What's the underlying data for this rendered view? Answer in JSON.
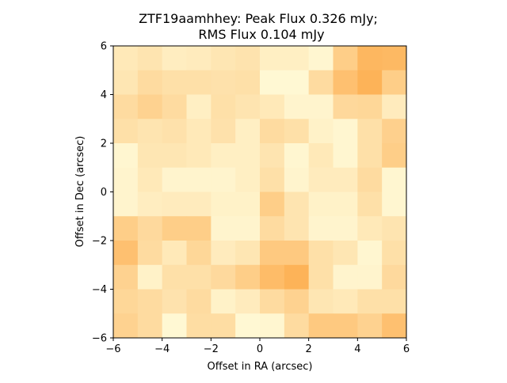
{
  "chart_data": {
    "type": "heatmap",
    "title_line1": "ZTF19aamhhey: Peak Flux 0.326 mJy;",
    "title_line2": "RMS Flux 0.104 mJy",
    "xlabel": "Offset in RA (arcsec)",
    "ylabel": "Offset in Dec (arcsec)",
    "xlim": [
      -6,
      6
    ],
    "ylim": [
      -6,
      6
    ],
    "x_ticks": [
      "−6",
      "−4",
      "−2",
      "0",
      "2",
      "4",
      "6"
    ],
    "y_ticks": [
      "−6",
      "−4",
      "−2",
      "0",
      "2",
      "4",
      "6"
    ],
    "grid": false,
    "colormap": "YlOrBr-like (pale yellow to orange)",
    "color_low": "#ffffe0",
    "color_high": "#fda540",
    "value_range": [
      0,
      1
    ],
    "grid_size": [
      12,
      12
    ],
    "cell_extent_x": [
      -6,
      6
    ],
    "cell_extent_y": [
      -6,
      6
    ],
    "rows_top_to_bottom": [
      [
        0.25,
        0.3,
        0.2,
        0.22,
        0.28,
        0.31,
        0.18,
        0.18,
        0.1,
        0.55,
        0.8,
        0.78
      ],
      [
        0.28,
        0.4,
        0.35,
        0.35,
        0.33,
        0.35,
        0.08,
        0.08,
        0.4,
        0.7,
        0.85,
        0.55
      ],
      [
        0.4,
        0.5,
        0.4,
        0.18,
        0.35,
        0.3,
        0.25,
        0.12,
        0.12,
        0.43,
        0.45,
        0.22
      ],
      [
        0.35,
        0.3,
        0.33,
        0.25,
        0.33,
        0.18,
        0.4,
        0.35,
        0.15,
        0.1,
        0.35,
        0.52
      ],
      [
        0.1,
        0.28,
        0.28,
        0.25,
        0.18,
        0.18,
        0.3,
        0.1,
        0.25,
        0.1,
        0.35,
        0.55
      ],
      [
        0.12,
        0.25,
        0.12,
        0.12,
        0.12,
        0.18,
        0.35,
        0.12,
        0.22,
        0.22,
        0.4,
        0.1
      ],
      [
        0.12,
        0.2,
        0.22,
        0.22,
        0.15,
        0.15,
        0.55,
        0.3,
        0.15,
        0.15,
        0.35,
        0.1
      ],
      [
        0.55,
        0.42,
        0.55,
        0.55,
        0.12,
        0.12,
        0.4,
        0.3,
        0.12,
        0.12,
        0.25,
        0.3
      ],
      [
        0.7,
        0.4,
        0.25,
        0.45,
        0.22,
        0.28,
        0.6,
        0.6,
        0.35,
        0.28,
        0.1,
        0.35
      ],
      [
        0.5,
        0.15,
        0.35,
        0.35,
        0.42,
        0.55,
        0.75,
        0.85,
        0.35,
        0.12,
        0.12,
        0.42
      ],
      [
        0.45,
        0.4,
        0.32,
        0.4,
        0.15,
        0.22,
        0.4,
        0.5,
        0.28,
        0.25,
        0.35,
        0.35
      ],
      [
        0.5,
        0.4,
        0.08,
        0.38,
        0.38,
        0.08,
        0.1,
        0.4,
        0.6,
        0.6,
        0.5,
        0.7
      ]
    ]
  }
}
